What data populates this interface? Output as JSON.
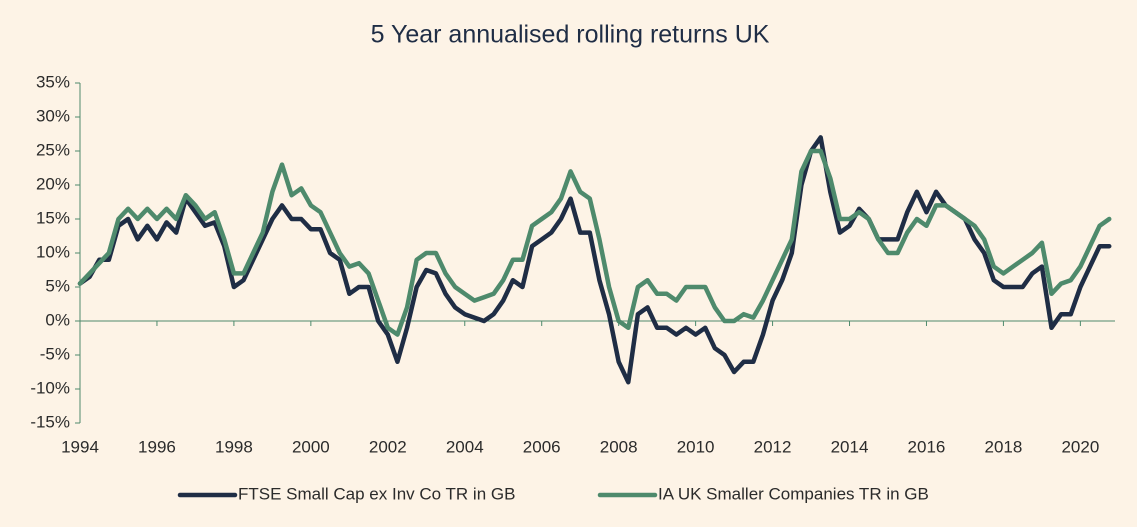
{
  "chart_data": {
    "type": "line",
    "title": "5 Year annualised rolling returns UK",
    "x": [
      1994,
      1994.25,
      1994.5,
      1994.75,
      1995,
      1995.25,
      1995.5,
      1995.75,
      1996,
      1996.25,
      1996.5,
      1996.75,
      1997,
      1997.25,
      1997.5,
      1997.75,
      1998,
      1998.25,
      1998.5,
      1998.75,
      1999,
      1999.25,
      1999.5,
      1999.75,
      2000,
      2000.25,
      2000.5,
      2000.75,
      2001,
      2001.25,
      2001.5,
      2001.75,
      2002,
      2002.25,
      2002.5,
      2002.75,
      2003,
      2003.25,
      2003.5,
      2003.75,
      2004,
      2004.25,
      2004.5,
      2004.75,
      2005,
      2005.25,
      2005.5,
      2005.75,
      2006,
      2006.25,
      2006.5,
      2006.75,
      2007,
      2007.25,
      2007.5,
      2007.75,
      2008,
      2008.25,
      2008.5,
      2008.75,
      2009,
      2009.25,
      2009.5,
      2009.75,
      2010,
      2010.25,
      2010.5,
      2010.75,
      2011,
      2011.25,
      2011.5,
      2011.75,
      2012,
      2012.25,
      2012.5,
      2012.75,
      2013,
      2013.25,
      2013.5,
      2013.75,
      2014,
      2014.25,
      2014.5,
      2014.75,
      2015,
      2015.25,
      2015.5,
      2015.75,
      2016,
      2016.25,
      2016.5,
      2016.75,
      2017,
      2017.25,
      2017.5,
      2017.75,
      2018,
      2018.25,
      2018.5,
      2018.75,
      2019,
      2019.25,
      2019.5,
      2019.75,
      2020,
      2020.25,
      2020.5,
      2020.75
    ],
    "series": [
      {
        "name": "FTSE Small Cap ex Inv Co TR in GB",
        "color": "#1f2d45",
        "values": [
          5.5,
          6.5,
          9,
          9,
          14,
          15,
          12,
          14,
          12,
          14.5,
          13,
          18,
          16,
          14,
          14.5,
          11,
          5,
          6,
          9,
          12,
          15,
          17,
          15,
          15,
          13.5,
          13.5,
          10,
          9,
          4,
          5,
          5,
          0,
          -2,
          -6,
          -1,
          5,
          7.5,
          7,
          4,
          2,
          1,
          0.5,
          0,
          1,
          3,
          6,
          5,
          11,
          12,
          13,
          15,
          18,
          13,
          13,
          6,
          1,
          -6,
          -9,
          1,
          2,
          -1,
          -1,
          -2,
          -1,
          -2,
          -1,
          -4,
          -5,
          -7.5,
          -6,
          -6,
          -2,
          3,
          6,
          10,
          20,
          25,
          27,
          19,
          13,
          14,
          16.5,
          15,
          12,
          12,
          12,
          16,
          19,
          16,
          19,
          17,
          16,
          15,
          12,
          10,
          6,
          5,
          5,
          5,
          7,
          8,
          -1,
          1,
          1,
          5,
          8,
          11,
          11
        ]
      },
      {
        "name": "IA UK Smaller Companies TR in GB",
        "color": "#4e8a6c",
        "values": [
          5.5,
          7,
          8.5,
          10,
          15,
          16.5,
          15,
          16.5,
          15,
          16.5,
          15,
          18.5,
          17,
          15,
          16,
          12,
          7,
          7,
          10,
          13,
          19,
          23,
          18.5,
          19.5,
          17,
          16,
          13,
          10,
          8,
          8.5,
          7,
          3,
          -1,
          -2,
          2,
          9,
          10,
          10,
          7,
          5,
          4,
          3,
          3.5,
          4,
          6,
          9,
          9,
          14,
          15,
          16,
          18,
          22,
          19,
          18,
          12,
          5,
          0,
          -1,
          5,
          6,
          4,
          4,
          3,
          5,
          5,
          5,
          2,
          0,
          0,
          1,
          0.5,
          3,
          6,
          9,
          12,
          22,
          25,
          25,
          21,
          15,
          15,
          16,
          15,
          12,
          10,
          10,
          13,
          15,
          14,
          17,
          17,
          16,
          15,
          14,
          12,
          8,
          7,
          8,
          9,
          10,
          11.5,
          4,
          5.5,
          6,
          8,
          11,
          14,
          15
        ]
      }
    ],
    "xlim": [
      1994,
      2020.9
    ],
    "ylim": [
      -15,
      35
    ],
    "xticks": [
      1994,
      1996,
      1998,
      2000,
      2002,
      2004,
      2006,
      2008,
      2010,
      2012,
      2014,
      2016,
      2018,
      2020
    ],
    "yticks": [
      {
        "value": -15,
        "label": "-15%"
      },
      {
        "value": -10,
        "label": "-10%"
      },
      {
        "value": -5,
        "label": "-5%"
      },
      {
        "value": 0,
        "label": "0%"
      },
      {
        "value": 5,
        "label": "5%"
      },
      {
        "value": 10,
        "label": "10%"
      },
      {
        "value": 15,
        "label": "15%"
      },
      {
        "value": 20,
        "label": "20%"
      },
      {
        "value": 25,
        "label": "25%"
      },
      {
        "value": 30,
        "label": "30%"
      },
      {
        "value": 35,
        "label": "35%"
      }
    ]
  }
}
